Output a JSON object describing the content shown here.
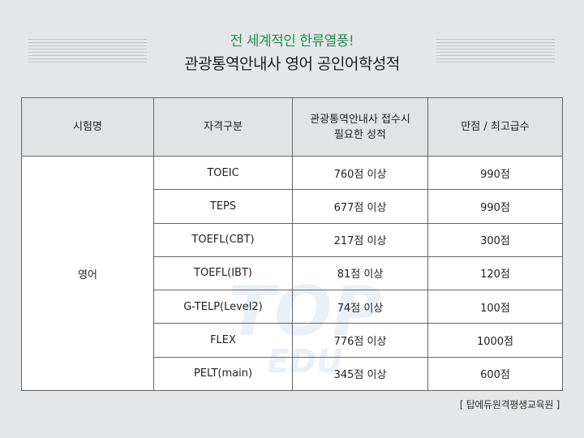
{
  "header": {
    "subtitle": "전 세계적인 한류열풍!",
    "title": "관광통역안내사 영어 공인어학성적"
  },
  "table": {
    "columns": [
      "시험명",
      "자격구분",
      "관광통역안내사 접수시\n필요한 성적",
      "만점 / 최고급수"
    ],
    "exam": "영어",
    "rows": [
      {
        "test": "TOEIC",
        "required": "760점 이상",
        "max": "990점"
      },
      {
        "test": "TEPS",
        "required": "677점 이상",
        "max": "990점"
      },
      {
        "test": "TOEFL(CBT)",
        "required": "217점 이상",
        "max": "300점"
      },
      {
        "test": "TOEFL(IBT)",
        "required": "81점 이상",
        "max": "120점"
      },
      {
        "test": "G-TELP(Level2)",
        "required": "74점 이상",
        "max": "100점"
      },
      {
        "test": "FLEX",
        "required": "776점 이상",
        "max": "1000점"
      },
      {
        "test": "PELT(main)",
        "required": "345점 이상",
        "max": "600점"
      }
    ]
  },
  "watermark": {
    "line1": "TOP",
    "line2": "EDU"
  },
  "credit": "[ 탑에듀원격평생교육원 ]"
}
